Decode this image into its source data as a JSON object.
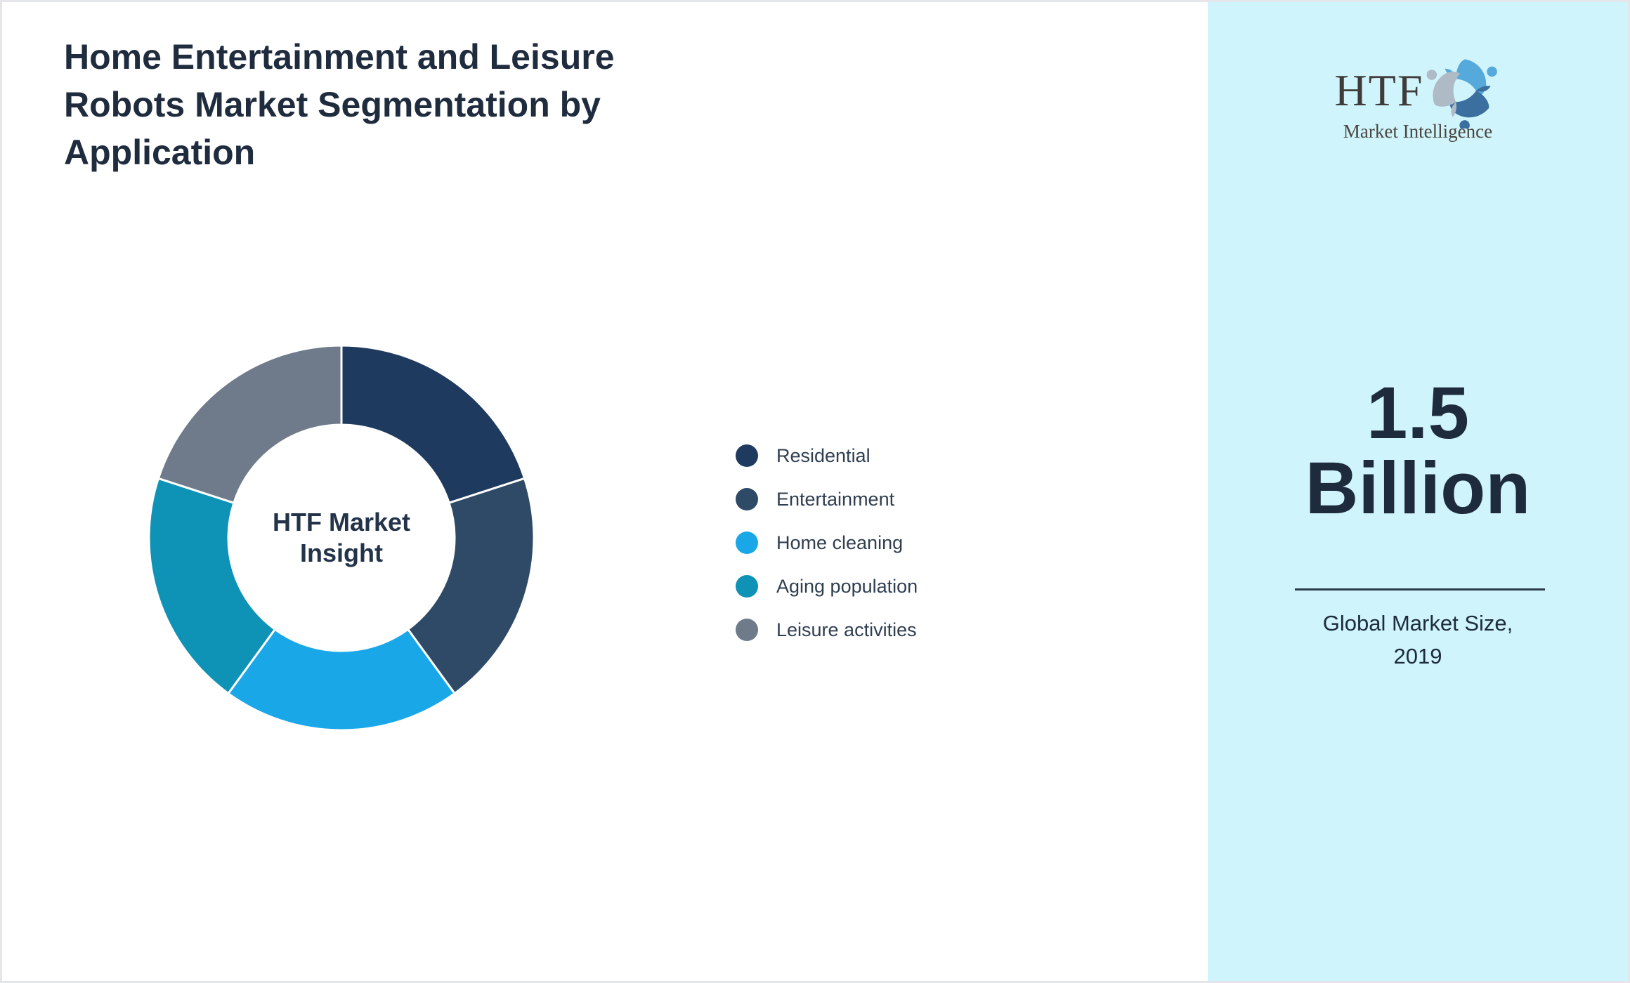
{
  "title": "Home Entertainment and Leisure\nRobots Market Segmentation by\nApplication",
  "chart_data": {
    "type": "pie",
    "variant": "donut",
    "center_label": "HTF Market\nInsight",
    "categories": [
      "Residential",
      "Entertainment",
      "Home cleaning",
      "Aging population",
      "Leisure activities"
    ],
    "values": [
      20,
      20,
      20,
      20,
      20
    ],
    "colors": [
      "#1F3A5F",
      "#2E4A66",
      "#19A7E8",
      "#0E92B5",
      "#6F7B8A"
    ],
    "start_angle_deg": 0,
    "direction": "clockwise",
    "legend_position": "right",
    "segment_gap_color": "#FFFFFF"
  },
  "side_panel": {
    "background": "#CFF4FB",
    "logo": {
      "text": "HTF",
      "subtext": "Market Intelligence",
      "swirl_colors": [
        "#56A9DB",
        "#3A6F9F",
        "#AEBAC5"
      ]
    },
    "stat_value": "1.5\nBillion",
    "stat_caption": "Global Market Size,\n2019"
  }
}
